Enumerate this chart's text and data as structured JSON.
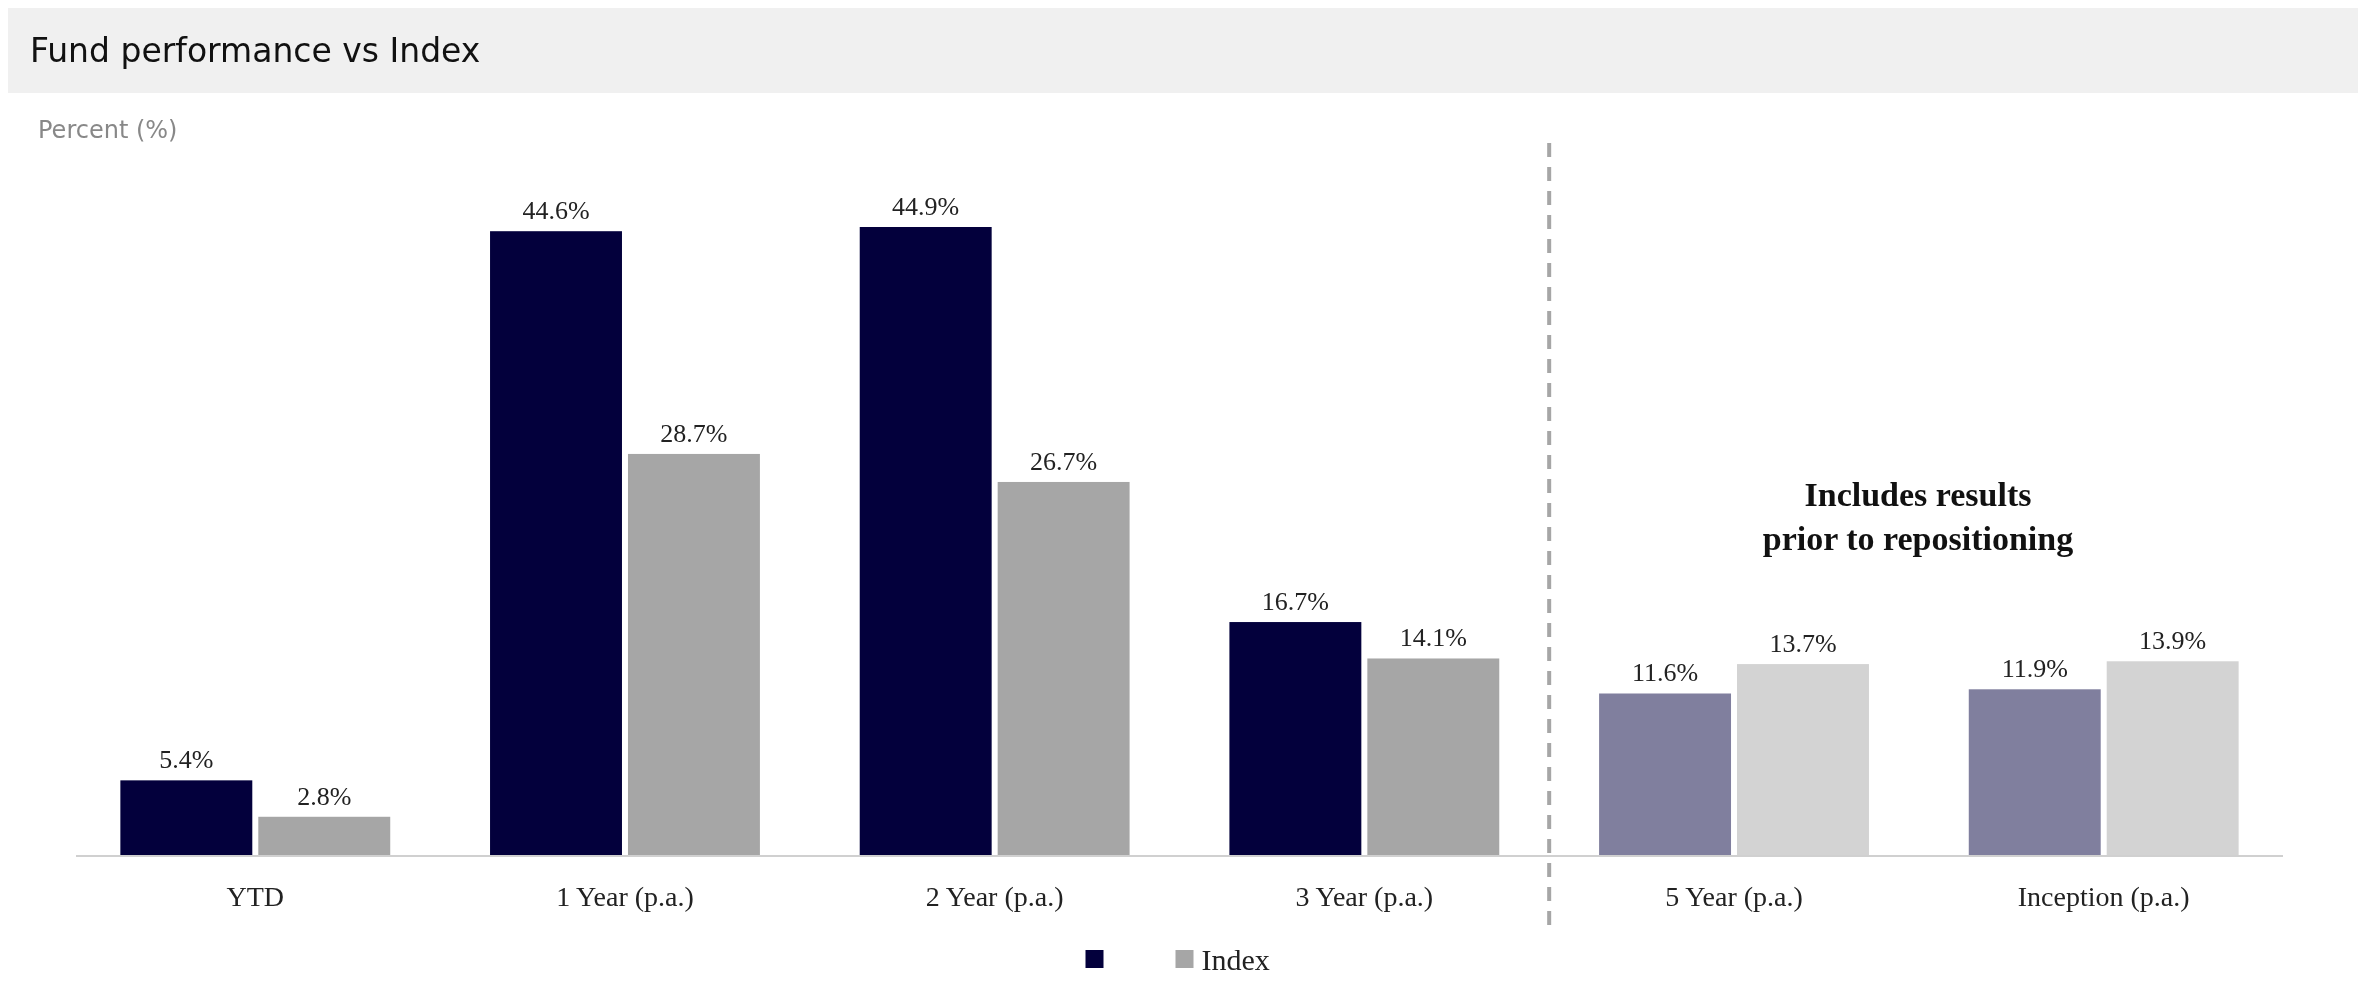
{
  "chart_data": {
    "type": "bar",
    "title": "Fund performance vs Index",
    "ylabel": "Percent (%)",
    "categories": [
      "YTD",
      "1 Year (p.a.)",
      "2 Year (p.a.)",
      "3 Year (p.a.)",
      "5 Year (p.a.)",
      "Inception (p.a.)"
    ],
    "series": [
      {
        "color": "#03003c",
        "colors": [
          "#03003c",
          "#03003c",
          "#03003c",
          "#03003c",
          "#807f9e",
          "#807f9e"
        ],
        "values": [
          5.4,
          44.6,
          44.9,
          16.7,
          11.6,
          11.9
        ],
        "value_labels": [
          "5.4%",
          "44.6%",
          "44.9%",
          "16.7%",
          "11.6%",
          "11.9%"
        ]
      },
      {
        "name": "Index",
        "color": "#a6a6a6",
        "colors": [
          "#a6a6a6",
          "#a6a6a6",
          "#a6a6a6",
          "#a6a6a6",
          "#d3d3d3",
          "#d3d3d3"
        ],
        "values": [
          2.8,
          28.7,
          26.7,
          14.1,
          13.7,
          13.9
        ],
        "value_labels": [
          "2.8%",
          "28.7%",
          "26.7%",
          "14.1%",
          "13.7%",
          "13.9%"
        ]
      }
    ],
    "annotations": [
      "Includes results prior to repositioning"
    ],
    "legend": "bottom"
  }
}
